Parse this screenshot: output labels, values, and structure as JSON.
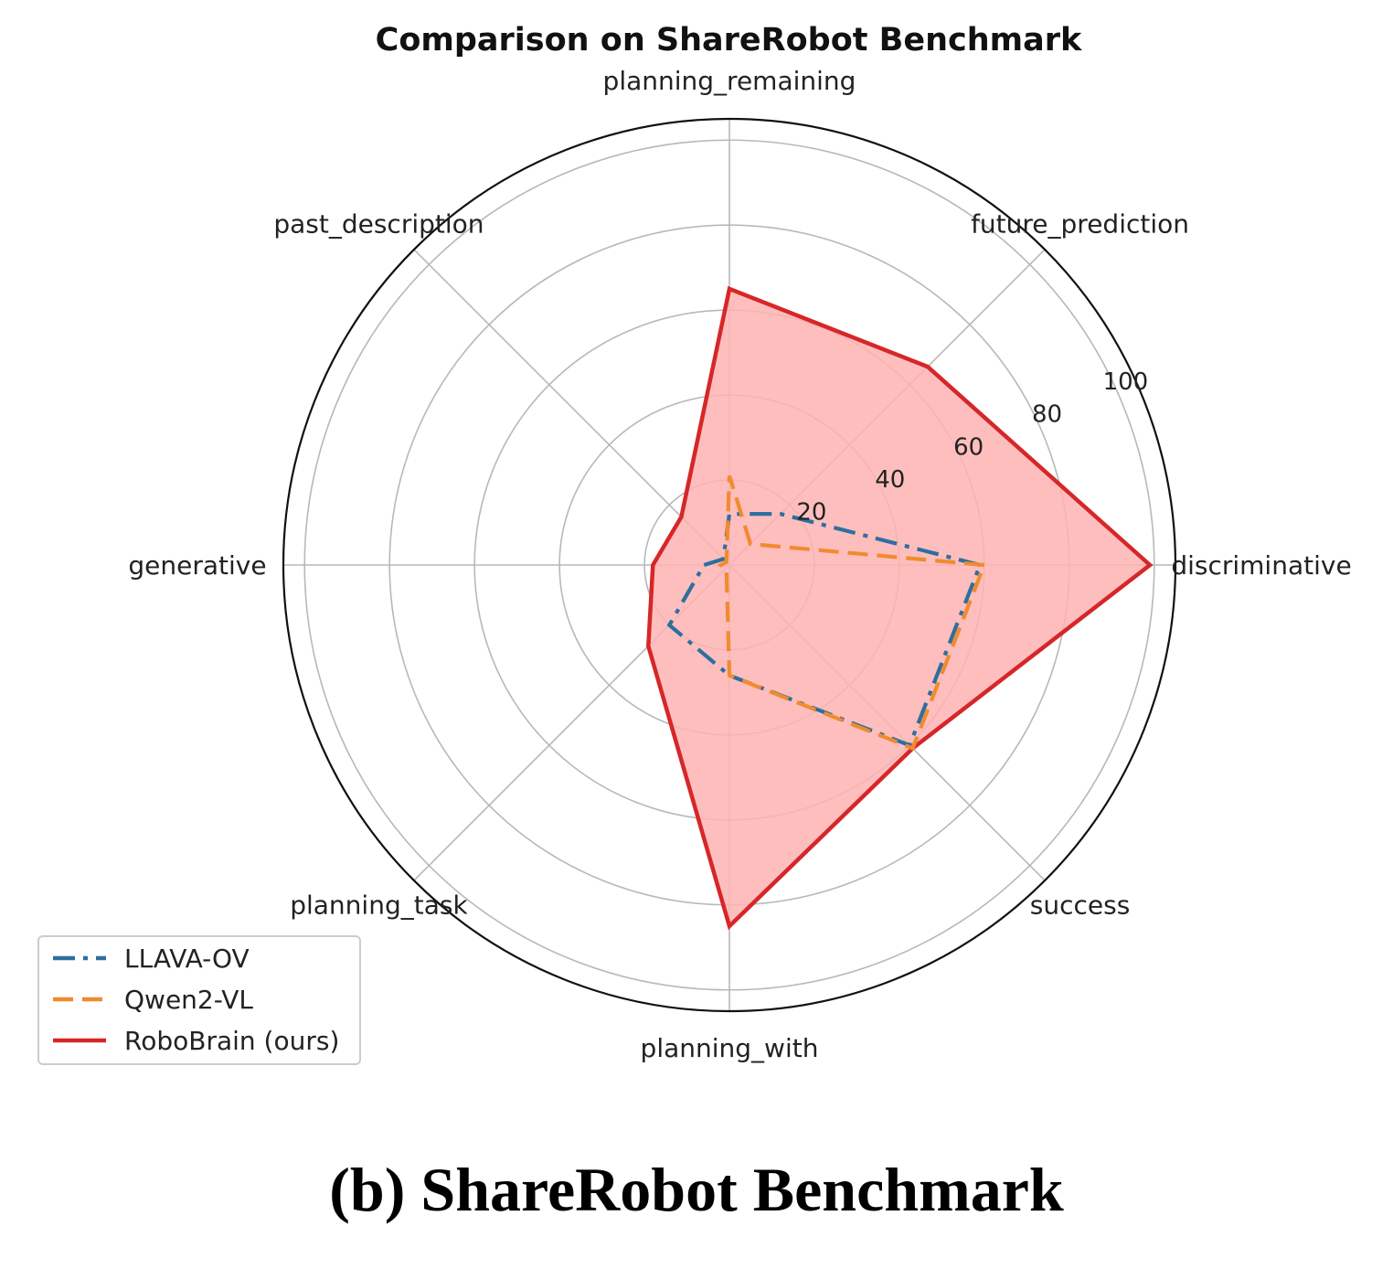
{
  "chart_data": {
    "type": "radar",
    "title": "Comparison on ShareRobot Benchmark",
    "axes": [
      "discriminative",
      "future_prediction",
      "planning_remaining",
      "past_description",
      "generative",
      "planning_task",
      "planning_with",
      "success"
    ],
    "rlim": [
      0,
      105
    ],
    "r_ticks": [
      20,
      40,
      60,
      80,
      100
    ],
    "r_tick_labels": [
      "20",
      "40",
      "60",
      "80",
      "100"
    ],
    "grid": true,
    "legend_position": "lower-left",
    "series": [
      {
        "name": "LLAVA-OV",
        "values": [
          59,
          17,
          12,
          2,
          6,
          20,
          26,
          60
        ],
        "color": "#2d6f9e",
        "style": "dashdot",
        "fill": false
      },
      {
        "name": "Qwen2-VL",
        "values": [
          60,
          7,
          21,
          1,
          2,
          1,
          26,
          61
        ],
        "color": "#f08b2e",
        "style": "dashed",
        "fill": false
      },
      {
        "name": "RoboBrain (ours)",
        "values": [
          99,
          66,
          65,
          16,
          18,
          27,
          85,
          61
        ],
        "color": "#d62728",
        "style": "solid",
        "fill": true,
        "fill_color": "#ffb3b3"
      }
    ]
  },
  "caption": "(b)  ShareRobot Benchmark"
}
